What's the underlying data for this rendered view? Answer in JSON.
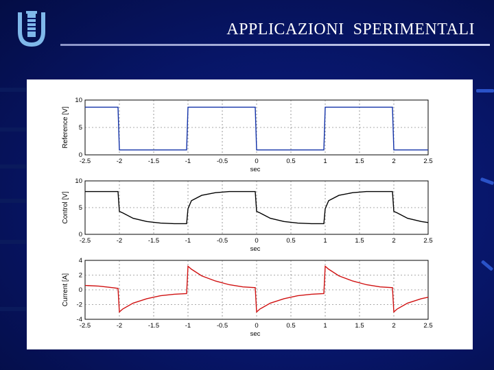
{
  "slide": {
    "title": "APPLICAZIONI  SPERIMENTALI",
    "logo_icon": "university-tower-logo-icon",
    "background_color": "#071566",
    "accent_color": "#cfd5f2"
  },
  "chart_data": [
    {
      "type": "line",
      "ylabel": "Reference [V]",
      "xlabel": "sec",
      "xlim": [
        -2.5,
        2.5
      ],
      "ylim": [
        0,
        10
      ],
      "yticks": [
        "10",
        "5",
        "0"
      ],
      "xticks": [
        "-2.5",
        "-2",
        "-1.5",
        "-1",
        "-0.5",
        "0",
        "0.5",
        "1",
        "1.5",
        "2",
        "2.5"
      ],
      "grid": true,
      "color": "#1030a8",
      "series": [
        {
          "x": [
            -2.5,
            -2.02,
            -2.0,
            -1.02,
            -1.0,
            -0.02,
            0.0,
            0.98,
            1.0,
            1.98,
            2.0,
            2.5
          ],
          "y": [
            8.7,
            8.7,
            0.9,
            0.9,
            8.7,
            8.7,
            0.9,
            0.9,
            8.7,
            8.7,
            0.9,
            0.9
          ]
        }
      ]
    },
    {
      "type": "line",
      "ylabel": "Control [V]",
      "xlabel": "sec",
      "xlim": [
        -2.5,
        2.5
      ],
      "ylim": [
        0,
        10
      ],
      "yticks": [
        "10",
        "5",
        "0"
      ],
      "xticks": [
        "-2.5",
        "-2",
        "-1.5",
        "-1",
        "-0.5",
        "0",
        "0.5",
        "1",
        "1.5",
        "2",
        "2.5"
      ],
      "grid": true,
      "color": "#000000",
      "series": [
        {
          "x": [
            -2.5,
            -2.02,
            -2.0,
            -1.95,
            -1.8,
            -1.6,
            -1.4,
            -1.2,
            -1.02,
            -1.0,
            -0.95,
            -0.8,
            -0.6,
            -0.4,
            -0.2,
            -0.02,
            0.0,
            0.05,
            0.2,
            0.4,
            0.6,
            0.8,
            0.98,
            1.0,
            1.05,
            1.2,
            1.4,
            1.6,
            1.8,
            1.98,
            2.0,
            2.05,
            2.2,
            2.4,
            2.5
          ],
          "y": [
            8.0,
            8.0,
            4.3,
            4.0,
            3.0,
            2.4,
            2.1,
            2.0,
            2.0,
            4.8,
            6.3,
            7.3,
            7.8,
            8.0,
            8.0,
            8.0,
            4.3,
            4.0,
            3.0,
            2.4,
            2.1,
            2.0,
            2.0,
            4.8,
            6.3,
            7.3,
            7.8,
            8.0,
            8.0,
            8.0,
            4.3,
            4.0,
            3.0,
            2.4,
            2.2
          ]
        }
      ]
    },
    {
      "type": "line",
      "ylabel": "Current [A]",
      "xlabel": "sec",
      "xlim": [
        -2.5,
        2.5
      ],
      "ylim": [
        -4,
        4
      ],
      "yticks": [
        "4",
        "2",
        "0",
        "-2",
        "-4"
      ],
      "xticks": [
        "-2.5",
        "-2",
        "-1.5",
        "-1",
        "-0.5",
        "0",
        "0.5",
        "1",
        "1.5",
        "2",
        "2.5"
      ],
      "grid": true,
      "color": "#d01010",
      "series": [
        {
          "x": [
            -2.5,
            -2.3,
            -2.1,
            -2.02,
            -2.0,
            -1.95,
            -1.8,
            -1.6,
            -1.4,
            -1.2,
            -1.02,
            -1.0,
            -0.95,
            -0.8,
            -0.6,
            -0.4,
            -0.2,
            -0.02,
            0.0,
            0.05,
            0.2,
            0.4,
            0.6,
            0.8,
            0.98,
            1.0,
            1.05,
            1.2,
            1.4,
            1.6,
            1.8,
            1.98,
            2.0,
            2.05,
            2.2,
            2.4,
            2.5
          ],
          "y": [
            0.6,
            0.5,
            0.3,
            0.2,
            -3.0,
            -2.6,
            -1.8,
            -1.2,
            -0.8,
            -0.6,
            -0.5,
            3.2,
            2.8,
            1.9,
            1.2,
            0.7,
            0.4,
            0.3,
            -3.0,
            -2.6,
            -1.8,
            -1.2,
            -0.8,
            -0.6,
            -0.5,
            3.2,
            2.8,
            1.9,
            1.2,
            0.7,
            0.4,
            0.3,
            -3.0,
            -2.6,
            -1.8,
            -1.2,
            -1.0
          ]
        }
      ]
    }
  ]
}
